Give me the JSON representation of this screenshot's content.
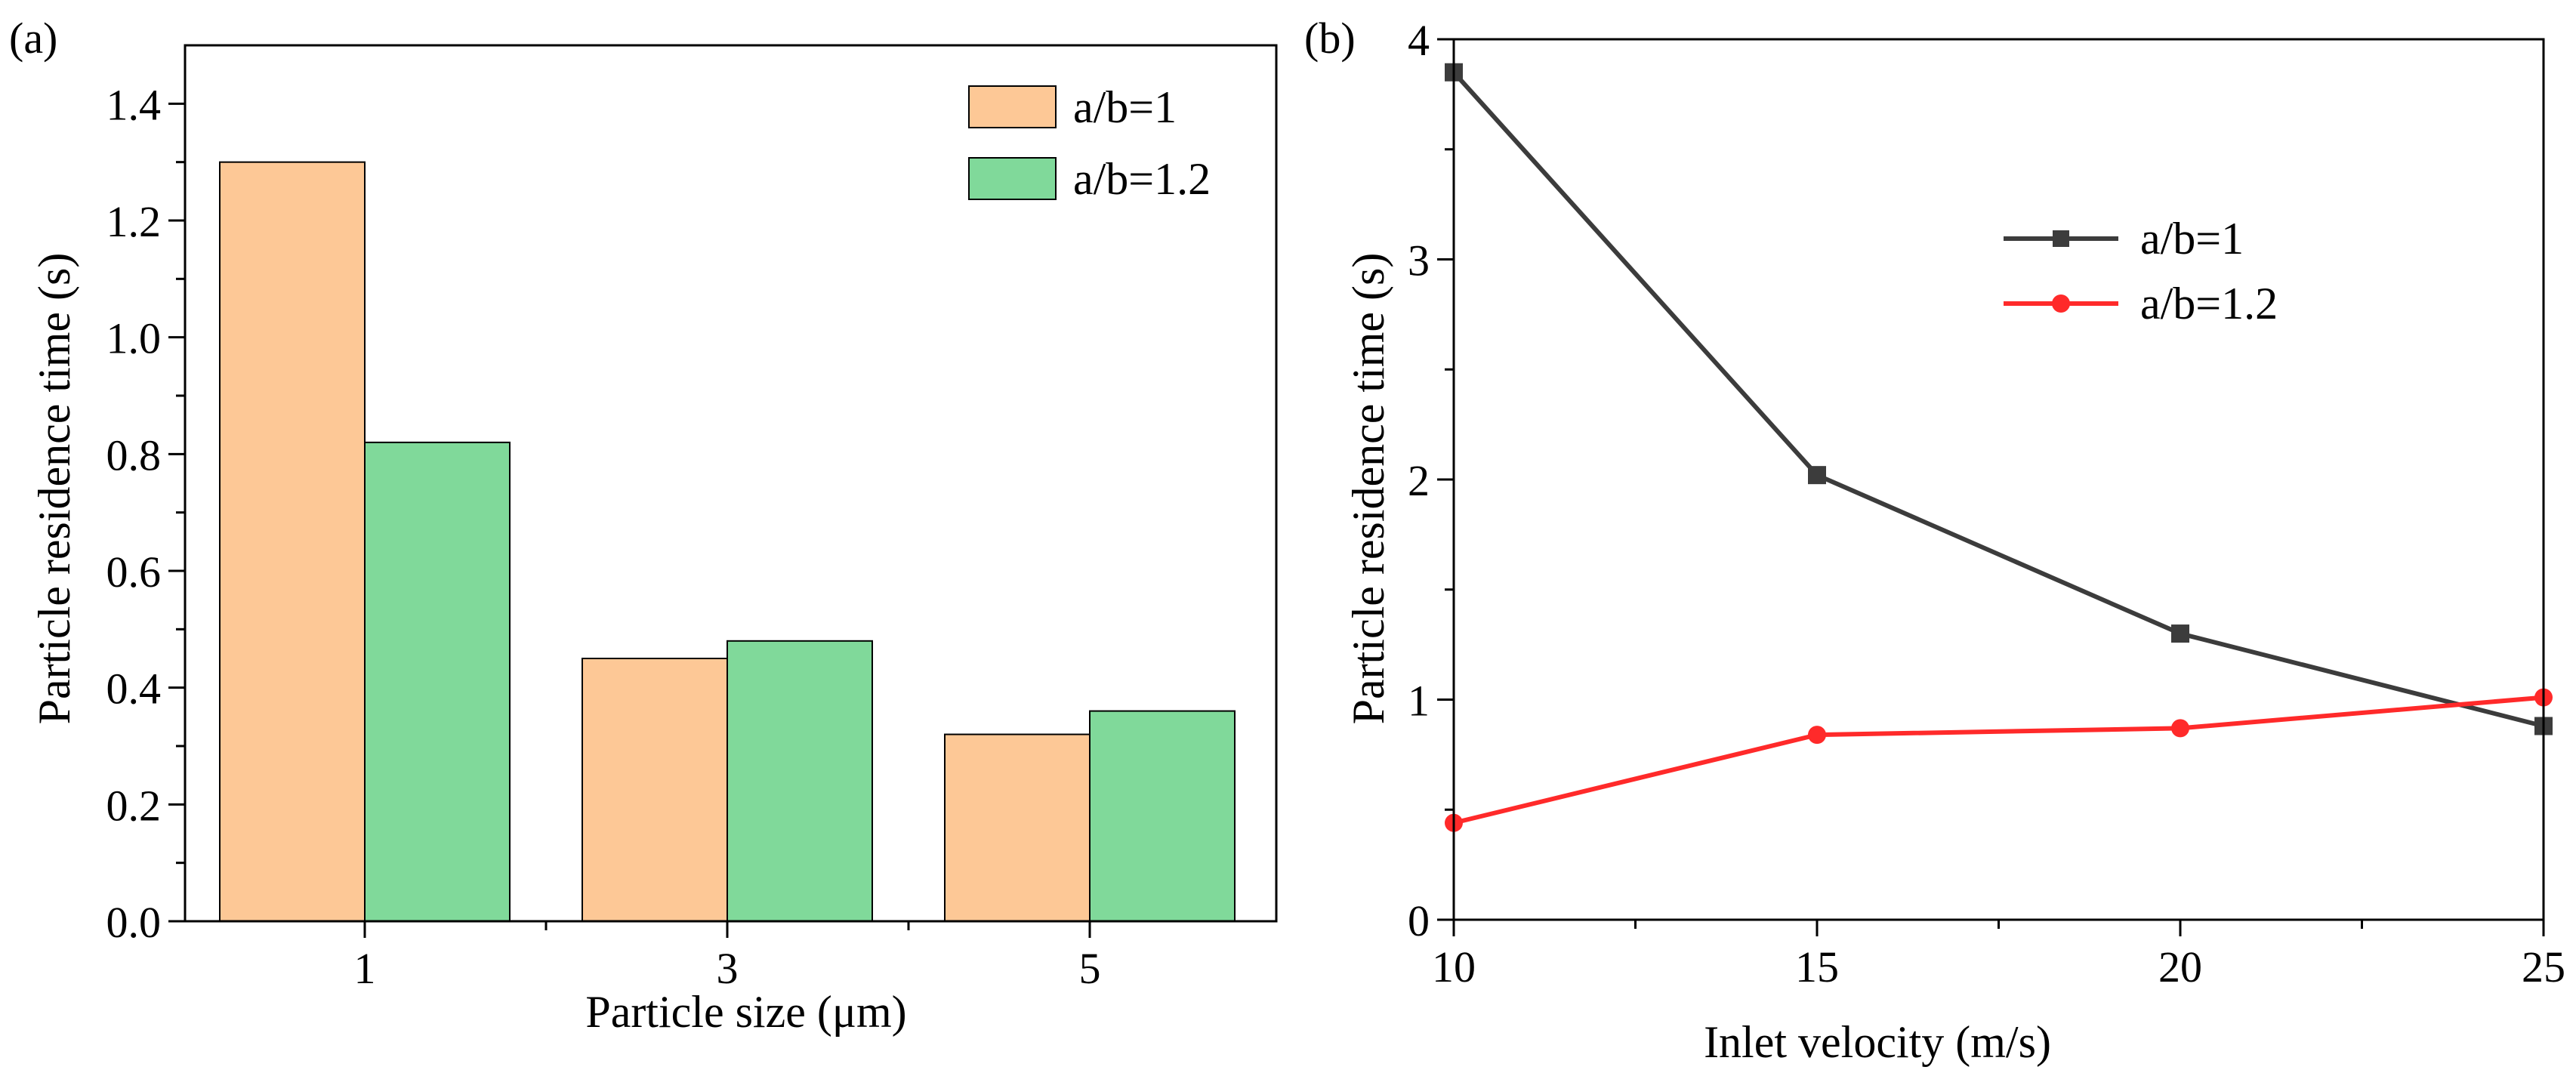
{
  "chart_data": [
    {
      "panel_label": "(a)",
      "type": "bar",
      "xlabel": "Particle size  (μm)",
      "ylabel": "Particle residence time (s)",
      "ylim": [
        0,
        1.5
      ],
      "yticks": [
        "0.0",
        "0.2",
        "0.4",
        "0.6",
        "0.8",
        "1.0",
        "1.2",
        "1.4"
      ],
      "yticks_values": [
        0,
        0.2,
        0.4,
        0.6,
        0.8,
        1.0,
        1.2,
        1.4
      ],
      "categories": [
        "1",
        "3",
        "5"
      ],
      "legend_position": "top-right",
      "series": [
        {
          "name": "a/b=1",
          "color": "#fdc896",
          "values": [
            1.3,
            0.45,
            0.32
          ]
        },
        {
          "name": "a/b=1.2",
          "color": "#80d99a",
          "values": [
            0.82,
            0.48,
            0.36
          ]
        }
      ]
    },
    {
      "panel_label": "(b)",
      "type": "line",
      "xlabel": "Inlet velocity  (m/s)",
      "ylabel": "Particle residence time (s)",
      "xlim": [
        10,
        25
      ],
      "ylim": [
        0,
        4
      ],
      "xticks": [
        "10",
        "15",
        "20",
        "25"
      ],
      "xticks_values": [
        10,
        15,
        20,
        25
      ],
      "yticks": [
        "0",
        "1",
        "2",
        "3",
        "4"
      ],
      "yticks_values": [
        0,
        1,
        2,
        3,
        4
      ],
      "x": [
        10,
        15,
        20,
        25
      ],
      "legend_position": "upper-center",
      "series": [
        {
          "name": "a/b=1",
          "color": "#3c3c3c",
          "marker": "square",
          "values": [
            3.85,
            2.02,
            1.3,
            0.88
          ]
        },
        {
          "name": "a/b=1.2",
          "color": "#ff2a2a",
          "marker": "circle",
          "values": [
            0.44,
            0.84,
            0.87,
            1.01
          ]
        }
      ]
    }
  ]
}
